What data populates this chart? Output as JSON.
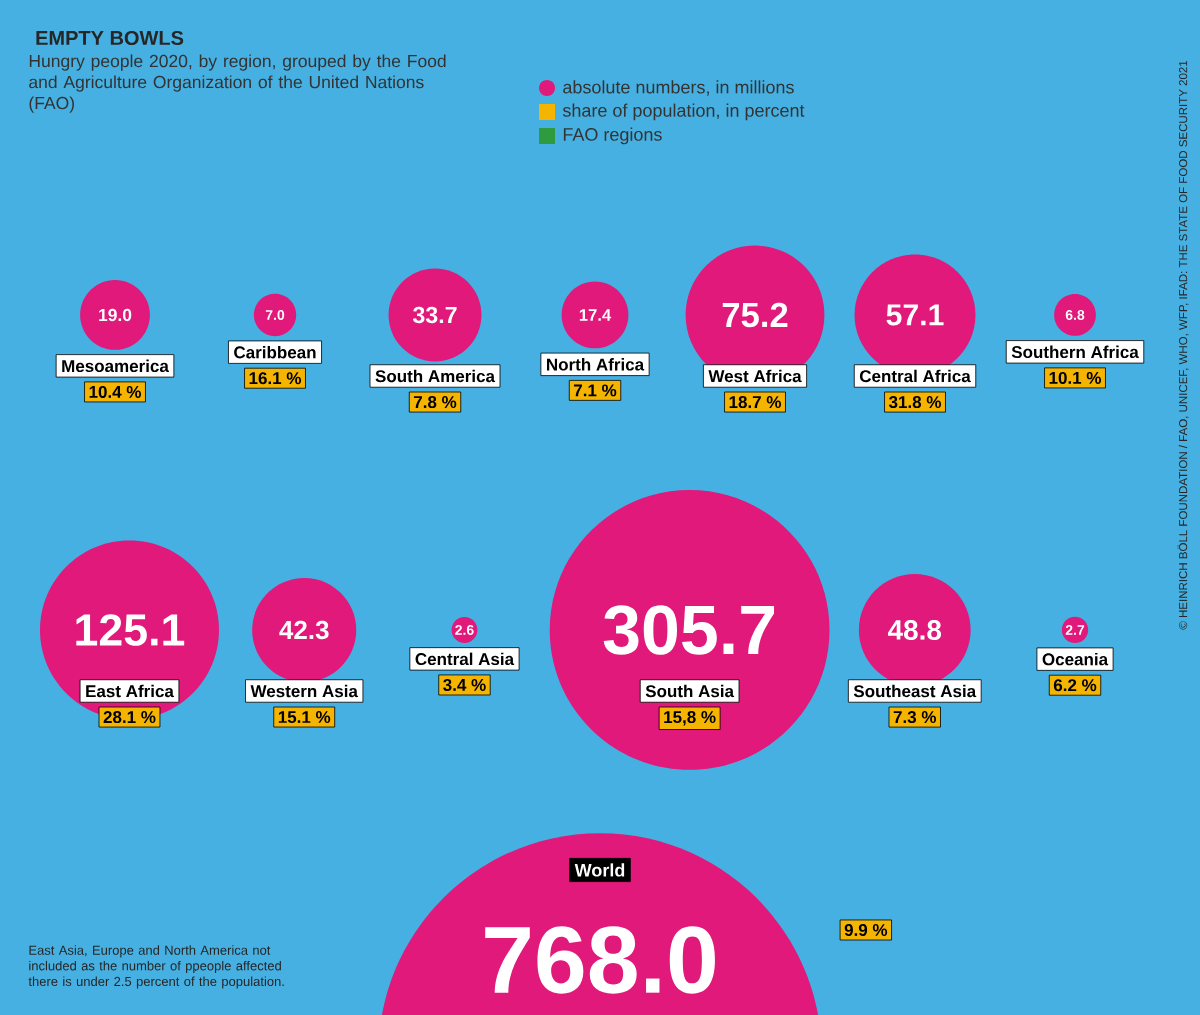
{
  "chart_data": {
    "type": "other",
    "title": "EMPTY BOWLS",
    "subtitle": "Hungry people 2020, by region, grouped by the Food and Agriculture Organization of the United Nations (FAO)",
    "categories": [
      "Mesoamerica",
      "Caribbean",
      "South America",
      "North Africa",
      "West Africa",
      "Central Africa",
      "Southern Africa",
      "East Africa",
      "Western Asia",
      "Central Asia",
      "South Asia",
      "Southeast Asia",
      "Oceania",
      "World"
    ],
    "series": [
      {
        "name": "absolute numbers, in millions",
        "color": "#e0197a",
        "values": [
          19.0,
          7.0,
          33.7,
          17.4,
          75.2,
          57.1,
          6.8,
          125.1,
          42.3,
          2.6,
          305.7,
          48.8,
          2.7,
          768.0
        ],
        "value_labels": [
          "19.0",
          "7.0",
          "33.7",
          "17.4",
          "75.2",
          "57.1",
          "6.8",
          "125.1",
          "42.3",
          "2.6",
          "305.7",
          "48.8",
          "2.7",
          "768.0"
        ]
      },
      {
        "name": "share of population, in percent",
        "color": "#f5b400",
        "values": [
          10.4,
          16.1,
          7.8,
          7.1,
          18.7,
          31.8,
          10.1,
          28.1,
          15.1,
          3.4,
          15.8,
          7.3,
          6.2,
          9.9
        ],
        "value_labels": [
          "10.4 %",
          "16.1 %",
          "7.8 %",
          "7.1 %",
          "18.7 %",
          "31.8 %",
          "10.1 %",
          "28.1 %",
          "15.1 %",
          "3.4 %",
          "15,8 %",
          "7.3 %",
          "6.2 %",
          "9.9 %"
        ]
      },
      {
        "name": "FAO regions",
        "color": "#2e9b3e",
        "values": [
          null,
          null,
          null,
          null,
          null,
          null,
          null,
          null,
          null,
          null,
          null,
          null,
          null,
          null
        ]
      }
    ],
    "legend": "top",
    "annotations": [
      "East Asia, Europe and North America not included as the number of ppeople affected there is under 2.5 percent of the population.",
      "© HEINRICH BÖLL FOUNDATION / FAO, UNICEF, WHO, WFP, IFAD: THE STATE OF FOOD SECURITY 2021"
    ]
  }
}
